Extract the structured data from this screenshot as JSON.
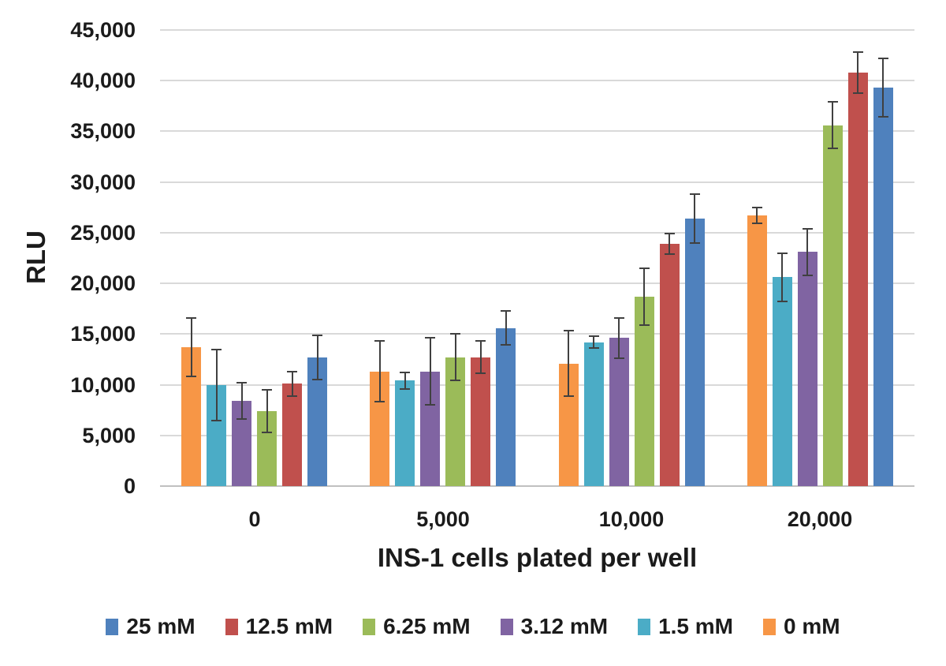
{
  "chart_data": {
    "type": "bar",
    "title": "",
    "xlabel": "INS-1 cells plated per well",
    "ylabel": "RLU",
    "ylim": [
      0,
      45000
    ],
    "ytick_step": 5000,
    "yticks": [
      {
        "value": 45000,
        "label": "45,000"
      },
      {
        "value": 40000,
        "label": "40,000"
      },
      {
        "value": 35000,
        "label": "35,000"
      },
      {
        "value": 30000,
        "label": "30,000"
      },
      {
        "value": 25000,
        "label": "25,000"
      },
      {
        "value": 20000,
        "label": "20,000"
      },
      {
        "value": 15000,
        "label": "15,000"
      },
      {
        "value": 10000,
        "label": "10,000"
      },
      {
        "value": 5000,
        "label": "5,000"
      },
      {
        "value": 0,
        "label": "0"
      }
    ],
    "categories": [
      "0",
      "5,000",
      "10,000",
      "20,000"
    ],
    "grid": true,
    "legend_position": "bottom",
    "gridline_color": "#d9d9d9",
    "axis_line_color": "#c0c0c0",
    "error_bar_color": "#404040",
    "text_color": "#1b1b1b",
    "series": [
      {
        "name": "25 mM",
        "color": "#4F81BD",
        "values": [
          12700,
          15600,
          26400,
          39300
        ],
        "errors": [
          2200,
          1700,
          2400,
          2900
        ]
      },
      {
        "name": "12.5 mM",
        "color": "#C0504D",
        "values": [
          10100,
          12700,
          23900,
          40800
        ],
        "errors": [
          1200,
          1600,
          1000,
          2000
        ]
      },
      {
        "name": "6.25 mM",
        "color": "#9BBB59",
        "values": [
          7400,
          12700,
          18700,
          35600
        ],
        "errors": [
          2100,
          2300,
          2800,
          2300
        ]
      },
      {
        "name": "3.12 mM",
        "color": "#8064A2",
        "values": [
          8400,
          11300,
          14600,
          23100
        ],
        "errors": [
          1800,
          3300,
          2000,
          2300
        ]
      },
      {
        "name": "1.5 mM",
        "color": "#4BACC6",
        "values": [
          10000,
          10400,
          14200,
          20600
        ],
        "errors": [
          3500,
          800,
          600,
          2400
        ]
      },
      {
        "name": "0 mM",
        "color": "#F79646",
        "values": [
          13700,
          11300,
          12100,
          26700
        ],
        "errors": [
          2900,
          3000,
          3200,
          800
        ]
      }
    ],
    "draw_order_within_group": [
      5,
      4,
      3,
      2,
      1,
      0
    ]
  }
}
